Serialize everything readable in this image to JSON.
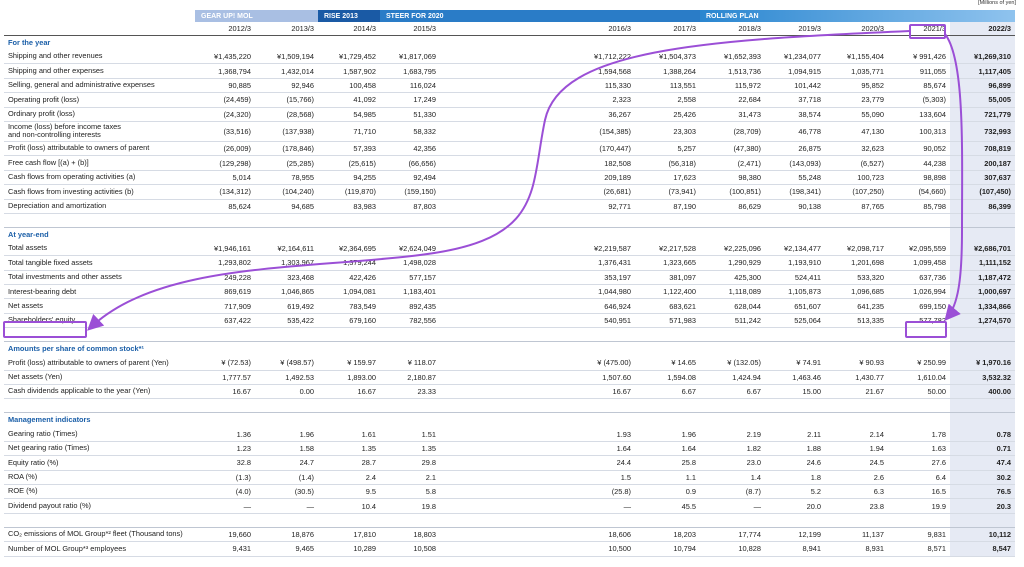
{
  "header": {
    "unit": "[Millions of yen]",
    "groups": [
      "GEAR UP! MOL",
      "RISE 2013",
      "STEER FOR 2020",
      "ROLLING PLAN"
    ]
  },
  "table": {
    "columns": [
      "2012/3",
      "2013/3",
      "2014/3",
      "2015/3",
      "2016/3",
      "2017/3",
      "2018/3",
      "2019/3",
      "2020/3",
      "2021/3",
      "2022/3"
    ],
    "sections": [
      {
        "title": "For the year",
        "rows": [
          {
            "label": "Shipping and other revenues",
            "values": [
              "¥1,435,220",
              "¥1,509,194",
              "¥1,729,452",
              "¥1,817,069",
              "¥1,712,222",
              "¥1,504,373",
              "¥1,652,393",
              "¥1,234,077",
              "¥1,155,404",
              "¥ 991,426",
              "¥1,269,310"
            ]
          },
          {
            "label": "Shipping and other expenses",
            "values": [
              "1,368,794",
              "1,432,014",
              "1,587,902",
              "1,683,795",
              "1,594,568",
              "1,388,264",
              "1,513,736",
              "1,094,915",
              "1,035,771",
              "911,055",
              "1,117,405"
            ]
          },
          {
            "label": "Selling, general and administrative expenses",
            "values": [
              "90,885",
              "92,946",
              "100,458",
              "116,024",
              "115,330",
              "113,551",
              "115,972",
              "101,442",
              "95,852",
              "85,674",
              "96,899"
            ]
          },
          {
            "label": "Operating profit (loss)",
            "values": [
              "(24,459)",
              "(15,766)",
              "41,092",
              "17,249",
              "2,323",
              "2,558",
              "22,684",
              "37,718",
              "23,779",
              "(5,303)",
              "55,005"
            ]
          },
          {
            "label": "Ordinary profit (loss)",
            "values": [
              "(24,320)",
              "(28,568)",
              "54,985",
              "51,330",
              "36,267",
              "25,426",
              "31,473",
              "38,574",
              "55,090",
              "133,604",
              "721,779"
            ]
          },
          {
            "label": "Income (loss) before income taxes and non-controlling interests",
            "values": [
              "(33,516)",
              "(137,938)",
              "71,710",
              "58,332",
              "(154,385)",
              "23,303",
              "(28,709)",
              "46,778",
              "47,130",
              "100,313",
              "732,993"
            ]
          },
          {
            "label": "Profit (loss) attributable to owners of parent",
            "values": [
              "(26,009)",
              "(178,846)",
              "57,393",
              "42,356",
              "(170,447)",
              "5,257",
              "(47,380)",
              "26,875",
              "32,623",
              "90,052",
              "708,819"
            ]
          },
          {
            "label": "Free cash flow [(a) + (b)]",
            "values": [
              "(129,298)",
              "(25,285)",
              "(25,615)",
              "(66,656)",
              "182,508",
              "(56,318)",
              "(2,471)",
              "(143,093)",
              "(6,527)",
              "44,238",
              "200,187"
            ]
          },
          {
            "label": "Cash flows from operating activities (a)",
            "values": [
              "5,014",
              "78,955",
              "94,255",
              "92,494",
              "209,189",
              "17,623",
              "98,380",
              "55,248",
              "100,723",
              "98,898",
              "307,637"
            ]
          },
          {
            "label": "Cash flows from investing activities (b)",
            "values": [
              "(134,312)",
              "(104,240)",
              "(119,870)",
              "(159,150)",
              "(26,681)",
              "(73,941)",
              "(100,851)",
              "(198,341)",
              "(107,250)",
              "(54,660)",
              "(107,450)"
            ]
          },
          {
            "label": "Depreciation and amortization",
            "values": [
              "85,624",
              "94,685",
              "83,983",
              "87,803",
              "92,771",
              "87,190",
              "86,629",
              "90,138",
              "87,765",
              "85,798",
              "86,399"
            ]
          }
        ]
      },
      {
        "title": "At year-end",
        "rows": [
          {
            "label": "Total assets",
            "values": [
              "¥1,946,161",
              "¥2,164,611",
              "¥2,364,695",
              "¥2,624,049",
              "¥2,219,587",
              "¥2,217,528",
              "¥2,225,096",
              "¥2,134,477",
              "¥2,098,717",
              "¥2,095,559",
              "¥2,686,701"
            ]
          },
          {
            "label": "Total tangible fixed assets",
            "values": [
              "1,293,802",
              "1,303,967",
              "1,379,244",
              "1,498,028",
              "1,376,431",
              "1,323,665",
              "1,290,929",
              "1,193,910",
              "1,201,698",
              "1,099,458",
              "1,111,152"
            ]
          },
          {
            "label": "Total investments and other assets",
            "values": [
              "249,228",
              "323,468",
              "422,426",
              "577,157",
              "353,197",
              "381,097",
              "425,300",
              "524,411",
              "533,320",
              "637,736",
              "1,187,472"
            ]
          },
          {
            "label": "Interest-bearing debt",
            "values": [
              "869,619",
              "1,046,865",
              "1,094,081",
              "1,183,401",
              "1,044,980",
              "1,122,400",
              "1,118,089",
              "1,105,873",
              "1,096,685",
              "1,026,994",
              "1,000,697"
            ]
          },
          {
            "label": "Net assets",
            "values": [
              "717,909",
              "619,492",
              "783,549",
              "892,435",
              "646,924",
              "683,621",
              "628,044",
              "651,607",
              "641,235",
              "699,150",
              "1,334,866"
            ]
          },
          {
            "label": "Shareholders' equity",
            "values": [
              "637,422",
              "535,422",
              "679,160",
              "782,556",
              "540,951",
              "571,983",
              "511,242",
              "525,064",
              "513,335",
              "577,782",
              "1,274,570"
            ]
          }
        ]
      },
      {
        "title": "Amounts per share of common stock*¹",
        "rows": [
          {
            "label": "Profit (loss) attributable to owners of parent (Yen)",
            "values": [
              "¥ (72.53)",
              "¥ (498.57)",
              "¥ 159.97",
              "¥ 118.07",
              "¥ (475.00)",
              "¥ 14.65",
              "¥ (132.05)",
              "¥ 74.91",
              "¥ 90.93",
              "¥ 250.99",
              "¥ 1,970.16"
            ]
          },
          {
            "label": "Net assets (Yen)",
            "values": [
              "1,777.57",
              "1,492.53",
              "1,893.00",
              "2,180.87",
              "1,507.60",
              "1,594.08",
              "1,424.94",
              "1,463.46",
              "1,430.77",
              "1,610.04",
              "3,532.32"
            ]
          },
          {
            "label": "Cash dividends applicable to the year (Yen)",
            "values": [
              "16.67",
              "0.00",
              "16.67",
              "23.33",
              "16.67",
              "6.67",
              "6.67",
              "15.00",
              "21.67",
              "50.00",
              "400.00"
            ]
          }
        ]
      },
      {
        "title": "Management indicators",
        "rows": [
          {
            "label": "Gearing ratio (Times)",
            "values": [
              "1.36",
              "1.96",
              "1.61",
              "1.51",
              "1.93",
              "1.96",
              "2.19",
              "2.11",
              "2.14",
              "1.78",
              "0.78"
            ]
          },
          {
            "label": "Net gearing ratio (Times)",
            "values": [
              "1.23",
              "1.58",
              "1.35",
              "1.35",
              "1.64",
              "1.64",
              "1.82",
              "1.88",
              "1.94",
              "1.63",
              "0.71"
            ]
          },
          {
            "label": "Equity ratio (%)",
            "values": [
              "32.8",
              "24.7",
              "28.7",
              "29.8",
              "24.4",
              "25.8",
              "23.0",
              "24.6",
              "24.5",
              "27.6",
              "47.4"
            ]
          },
          {
            "label": "ROA (%)",
            "values": [
              "(1.3)",
              "(1.4)",
              "2.4",
              "2.1",
              "1.5",
              "1.1",
              "1.4",
              "1.8",
              "2.6",
              "6.4",
              "30.2"
            ]
          },
          {
            "label": "ROE (%)",
            "values": [
              "(4.0)",
              "(30.5)",
              "9.5",
              "5.8",
              "(25.8)",
              "0.9",
              "(8.7)",
              "5.2",
              "6.3",
              "16.5",
              "76.5"
            ]
          },
          {
            "label": "Dividend payout ratio (%)",
            "values": [
              "—",
              "—",
              "10.4",
              "19.8",
              "—",
              "45.5",
              "—",
              "20.0",
              "23.8",
              "19.9",
              "20.3"
            ]
          }
        ]
      },
      {
        "rows": [
          {
            "label": "CO₂ emissions of MOL Group*² fleet (Thousand tons)",
            "values": [
              "19,660",
              "18,876",
              "17,810",
              "18,803",
              "18,606",
              "18,203",
              "17,774",
              "12,199",
              "11,137",
              "9,831",
              "10,112"
            ]
          },
          {
            "label": "Number of MOL Group*³ employees",
            "values": [
              "9,431",
              "9,465",
              "10,289",
              "10,508",
              "10,500",
              "10,794",
              "10,828",
              "8,941",
              "8,931",
              "8,571",
              "8,547"
            ]
          }
        ]
      }
    ]
  }
}
